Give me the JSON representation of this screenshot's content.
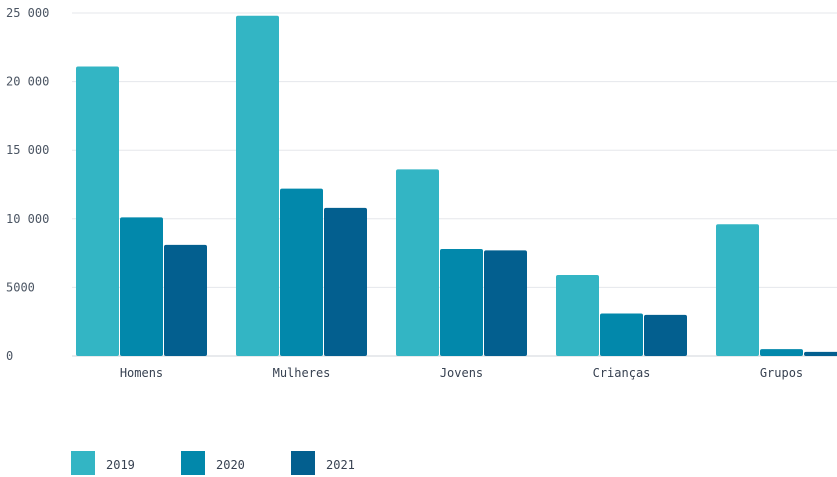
{
  "chart_data": {
    "type": "bar",
    "categories": [
      "Homens",
      "Mulheres",
      "Jovens",
      "Crianças",
      "Grupos"
    ],
    "series": [
      {
        "name": "2019",
        "color": "#33b5c4",
        "values": [
          21100,
          24800,
          13600,
          5900,
          9600
        ]
      },
      {
        "name": "2020",
        "color": "#0288ab",
        "values": [
          10100,
          12200,
          7800,
          3100,
          500
        ]
      },
      {
        "name": "2021",
        "color": "#035f8f",
        "values": [
          8100,
          10800,
          7700,
          3000,
          300
        ]
      }
    ],
    "ylim": [
      0,
      25000
    ],
    "yticks": [
      {
        "value": 0,
        "label": "0"
      },
      {
        "value": 5000,
        "label": "5000"
      },
      {
        "value": 10000,
        "label": "10 000"
      },
      {
        "value": 15000,
        "label": "15 000"
      },
      {
        "value": 20000,
        "label": "20 000"
      },
      {
        "value": 25000,
        "label": "25 000"
      }
    ],
    "grid": true,
    "legend": "bottom-left"
  }
}
